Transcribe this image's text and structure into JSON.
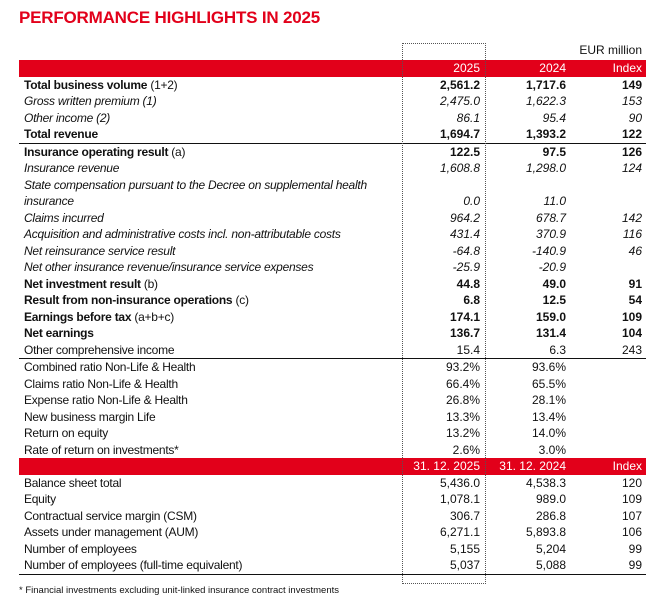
{
  "title": "PERFORMANCE HIGHLIGHTS IN 2025",
  "unit": "EUR million",
  "colors": {
    "accent": "#e2001a"
  },
  "header1": [
    "2025",
    "2024",
    "Index"
  ],
  "rows1": [
    {
      "label": "Total business volume",
      "suffix": " (1+2)",
      "values": [
        "2,561.2",
        "1,717.6",
        "149"
      ],
      "style": "b"
    },
    {
      "label": "Gross written premium (1)",
      "suffix": "",
      "values": [
        "2,475.0",
        "1,622.3",
        "153"
      ],
      "style": "i"
    },
    {
      "label": "Other income (2)",
      "suffix": "",
      "values": [
        "86.1",
        "95.4",
        "90"
      ],
      "style": "i"
    },
    {
      "label": "Total revenue",
      "suffix": "",
      "values": [
        "1,694.7",
        "1,393.2",
        "122"
      ],
      "style": "b sep"
    },
    {
      "label": "Insurance operating result",
      "suffix": " (a)",
      "values": [
        "122.5",
        "97.5",
        "126"
      ],
      "style": "b"
    },
    {
      "label": "Insurance revenue",
      "suffix": "",
      "values": [
        "1,608.8",
        "1,298.0",
        "124"
      ],
      "style": "i"
    },
    {
      "label": "State compensation pursuant to the Decree on supplemental health insurance",
      "suffix": "",
      "values": [
        "0.0",
        "11.0",
        ""
      ],
      "style": "i tall"
    },
    {
      "label": "Claims incurred",
      "suffix": "",
      "values": [
        "964.2",
        "678.7",
        "142"
      ],
      "style": "i"
    },
    {
      "label": "Acquisition and administrative costs incl. non-attributable costs",
      "suffix": "",
      "values": [
        "431.4",
        "370.9",
        "116"
      ],
      "style": "i"
    },
    {
      "label": "Net reinsurance service result",
      "suffix": "",
      "values": [
        "-64.8",
        "-140.9",
        "46"
      ],
      "style": "i"
    },
    {
      "label": "Net other insurance revenue/insurance service expenses",
      "suffix": "",
      "values": [
        "-25.9",
        "-20.9",
        ""
      ],
      "style": "i"
    },
    {
      "label": "Net investment result",
      "suffix": " (b)",
      "values": [
        "44.8",
        "49.0",
        "91"
      ],
      "style": "b"
    },
    {
      "label": "Result from non-insurance operations",
      "suffix": " (c)",
      "values": [
        "6.8",
        "12.5",
        "54"
      ],
      "style": "b"
    },
    {
      "label": "Earnings before tax",
      "suffix": " (a+b+c)",
      "values": [
        "174.1",
        "159.0",
        "109"
      ],
      "style": "b"
    },
    {
      "label": "Net earnings",
      "suffix": "",
      "values": [
        "136.7",
        "131.4",
        "104"
      ],
      "style": "b"
    },
    {
      "label": "Other comprehensive income",
      "suffix": "",
      "values": [
        "15.4",
        "6.3",
        "243"
      ],
      "style": "sep"
    },
    {
      "label": "Combined ratio Non-Life & Health",
      "suffix": "",
      "values": [
        "93.2%",
        "93.6%",
        ""
      ],
      "style": ""
    },
    {
      "label": "Claims ratio Non-Life & Health",
      "suffix": "",
      "values": [
        "66.4%",
        "65.5%",
        ""
      ],
      "style": ""
    },
    {
      "label": "Expense ratio Non-Life & Health",
      "suffix": "",
      "values": [
        "26.8%",
        "28.1%",
        ""
      ],
      "style": ""
    },
    {
      "label": "New business margin Life",
      "suffix": "",
      "values": [
        "13.3%",
        "13.4%",
        ""
      ],
      "style": ""
    },
    {
      "label": "Return on equity",
      "suffix": "",
      "values": [
        "13.2%",
        "14.0%",
        ""
      ],
      "style": ""
    },
    {
      "label": "Rate of return on investments*",
      "suffix": "",
      "values": [
        "2.6%",
        "3.0%",
        ""
      ],
      "style": ""
    }
  ],
  "header2": [
    "31. 12. 2025",
    "31. 12. 2024",
    "Index"
  ],
  "rows2": [
    {
      "label": "Balance sheet total",
      "suffix": "",
      "values": [
        "5,436.0",
        "4,538.3",
        "120"
      ],
      "style": ""
    },
    {
      "label": "Equity",
      "suffix": "",
      "values": [
        "1,078.1",
        "989.0",
        "109"
      ],
      "style": ""
    },
    {
      "label": "Contractual service margin (CSM)",
      "suffix": "",
      "values": [
        "306.7",
        "286.8",
        "107"
      ],
      "style": ""
    },
    {
      "label": "Assets under management (AUM)",
      "suffix": "",
      "values": [
        "6,271.1",
        "5,893.8",
        "106"
      ],
      "style": ""
    },
    {
      "label": "Number of employees",
      "suffix": "",
      "values": [
        "5,155",
        "5,204",
        "99"
      ],
      "style": ""
    },
    {
      "label": "Number of employees (full-time equivalent)",
      "suffix": "",
      "values": [
        "5,037",
        "5,088",
        "99"
      ],
      "style": "sep"
    }
  ],
  "footnote": "* Financial investments excluding unit-linked insurance contract investments"
}
